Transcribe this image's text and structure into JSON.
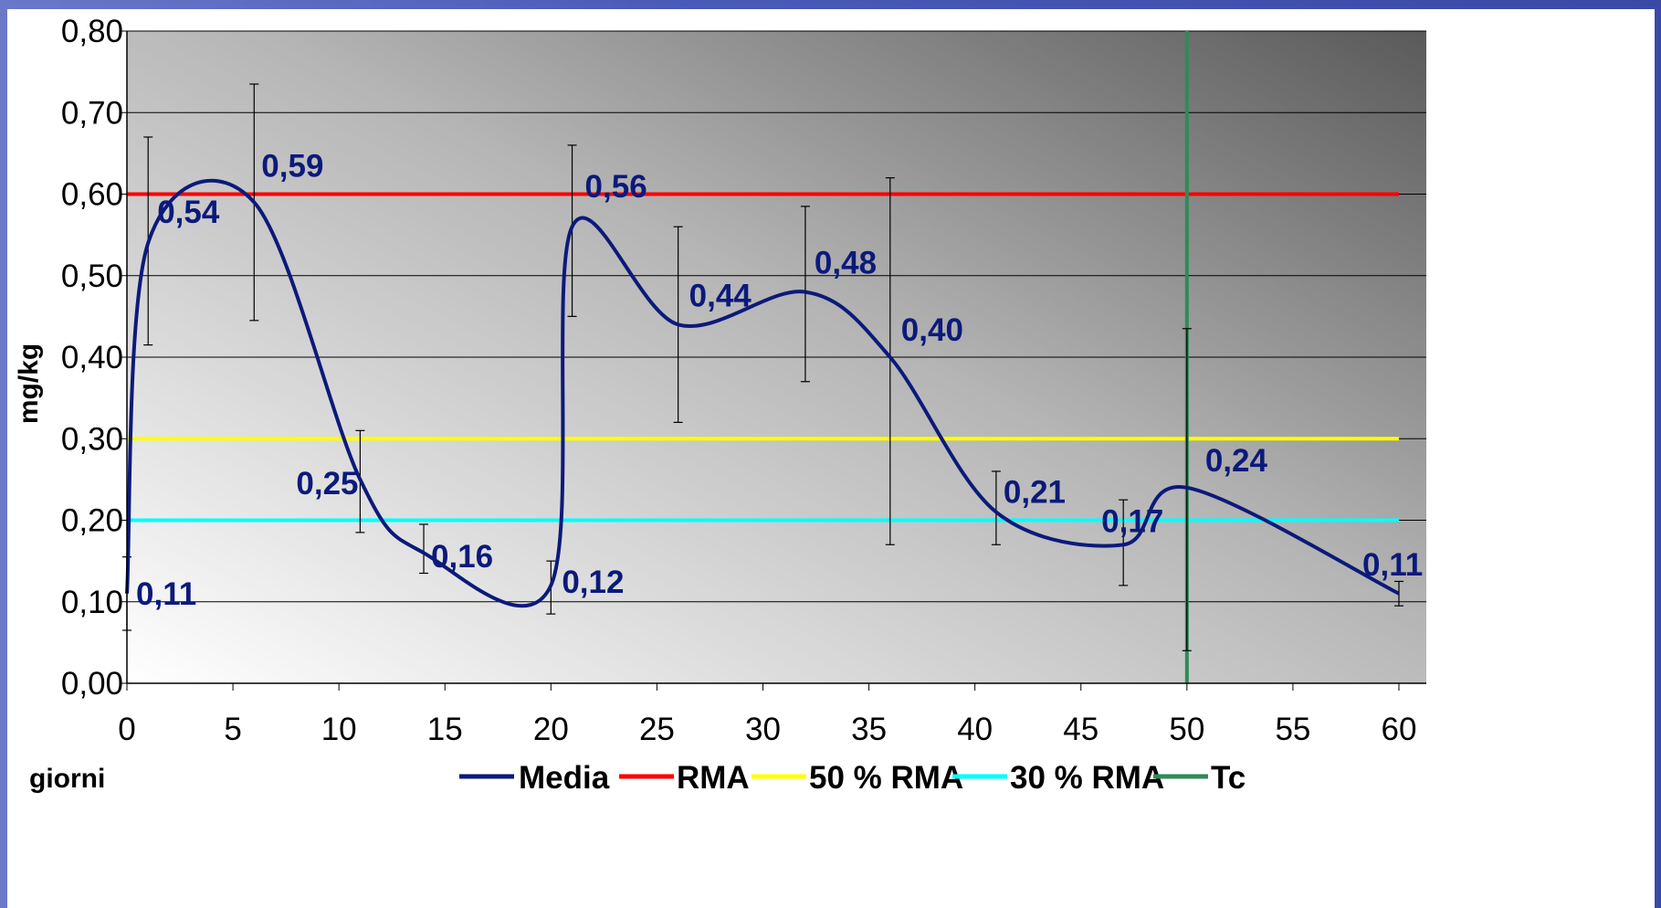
{
  "chart_data": {
    "type": "line",
    "xlabel": "giorni",
    "ylabel": "mg/kg",
    "xlim": [
      0,
      60
    ],
    "ylim": [
      0,
      0.8
    ],
    "x_ticks": [
      "0",
      "5",
      "10",
      "15",
      "20",
      "25",
      "30",
      "35",
      "40",
      "45",
      "50",
      "55",
      "60"
    ],
    "y_ticks": [
      "0,00",
      "0,10",
      "0,20",
      "0,30",
      "0,40",
      "0,50",
      "0,60",
      "0,70",
      "0,80"
    ],
    "grid": "horizontal",
    "background": "gradient",
    "legend_position": "bottom",
    "series": [
      {
        "name": "Media",
        "color": "#0b1a7a",
        "x": [
          0,
          1,
          6,
          11,
          14,
          20,
          21,
          26,
          32,
          36,
          41,
          47,
          50,
          60
        ],
        "y": [
          0.11,
          0.54,
          0.59,
          0.25,
          0.16,
          0.12,
          0.56,
          0.44,
          0.48,
          0.4,
          0.21,
          0.17,
          0.24,
          0.11
        ],
        "labels": [
          "0,11",
          "0,54",
          "0,59",
          "0,25",
          "0,16",
          "0,12",
          "0,56",
          "0,44",
          "0,48",
          "0,40",
          "0,21",
          "0,17",
          "0,24",
          "0,11"
        ],
        "error_low": [
          0.065,
          0.415,
          0.445,
          0.185,
          0.135,
          0.085,
          0.45,
          0.32,
          0.37,
          0.17,
          0.17,
          0.12,
          0.04,
          0.095
        ],
        "error_high": [
          0.155,
          0.67,
          0.735,
          0.31,
          0.195,
          0.15,
          0.66,
          0.56,
          0.585,
          0.62,
          0.26,
          0.225,
          0.435,
          0.125
        ]
      },
      {
        "name": "RMA",
        "color": "#ff0000",
        "type": "hline",
        "y": 0.6
      },
      {
        "name": "50 % RMA",
        "color": "#ffff00",
        "type": "hline",
        "y": 0.3
      },
      {
        "name": "30 % RMA",
        "color": "#00ffff",
        "type": "hline",
        "y": 0.2
      },
      {
        "name": "Tc",
        "color": "#2e8b57",
        "type": "vline",
        "x": 50
      }
    ]
  }
}
